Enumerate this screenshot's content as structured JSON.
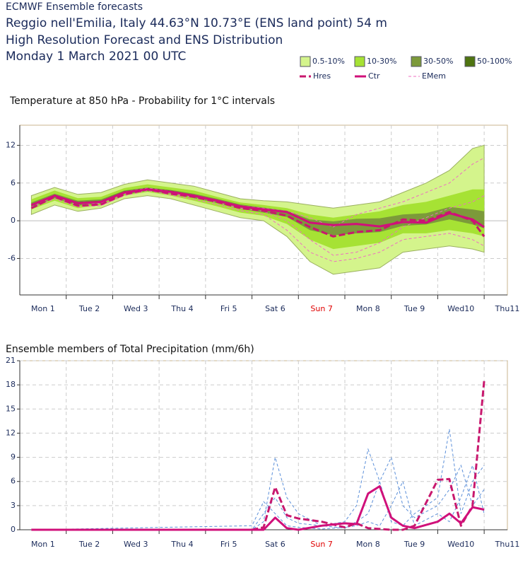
{
  "header": {
    "lines": [
      "ECMWF Ensemble forecasts",
      "Reggio nell'Emilia, Italy 44.63°N 10.73°E (ENS land point) 54 m",
      "High Resolution Forecast and ENS Distribution",
      "Monday  1 March 2021 00 UTC"
    ]
  },
  "chart_data": [
    {
      "type": "line",
      "title": "Temperature at 850 hPa - Probability for 1°C intervals",
      "xlim": [
        0,
        10.5
      ],
      "ylim": [
        -11.8,
        15.2
      ],
      "yticks": [
        -6,
        0,
        6,
        12
      ],
      "x_grid": [
        1,
        2,
        3,
        4,
        5,
        6,
        7,
        8,
        9,
        10
      ],
      "xticks": [
        {
          "value": 0.5,
          "label": "Mon 1"
        },
        {
          "value": 1.5,
          "label": "Tue 2"
        },
        {
          "value": 2.5,
          "label": "Wed 3"
        },
        {
          "value": 3.5,
          "label": "Thu 4"
        },
        {
          "value": 4.5,
          "label": "Fri 5"
        },
        {
          "value": 5.5,
          "label": "Sat 6"
        },
        {
          "value": 6.5,
          "label": "Sun 7",
          "color": "#e00000"
        },
        {
          "value": 7.5,
          "label": "Mon 8"
        },
        {
          "value": 8.5,
          "label": "Tue 9"
        },
        {
          "value": 9.5,
          "label": "Wed10"
        },
        {
          "value": 10.5,
          "label": "Thu11"
        }
      ],
      "grid": true,
      "legend": "top-right",
      "x": [
        0.25,
        0.75,
        1.25,
        1.75,
        2.25,
        2.75,
        3.25,
        3.75,
        4.25,
        4.75,
        5.25,
        5.75,
        6.25,
        6.75,
        7.25,
        7.75,
        8.25,
        8.75,
        9.25,
        9.75,
        10
      ],
      "series": [
        {
          "name": "0.5-10%",
          "color": "#d4f48c",
          "lower": [
            1.0,
            2.5,
            1.5,
            2.0,
            3.5,
            4.0,
            3.5,
            2.5,
            1.5,
            0.5,
            0.0,
            -2.5,
            -6.5,
            -8.5,
            -8.0,
            -7.5,
            -5.0,
            -4.5,
            -4.0,
            -4.5,
            -5.0
          ],
          "upper": [
            4.0,
            5.3,
            4.2,
            4.5,
            5.8,
            6.5,
            6.0,
            5.5,
            4.5,
            3.5,
            3.2,
            3.0,
            2.5,
            2.0,
            2.5,
            3.0,
            4.5,
            6.0,
            8.0,
            11.5,
            12.0
          ]
        },
        {
          "name": "10-30%",
          "color": "#a6e234",
          "lower": [
            1.8,
            3.2,
            2.0,
            2.5,
            4.0,
            4.6,
            4.0,
            3.2,
            2.3,
            1.3,
            0.8,
            -0.5,
            -3.0,
            -4.5,
            -4.0,
            -3.5,
            -2.0,
            -2.0,
            -1.5,
            -2.0,
            -2.5
          ],
          "upper": [
            3.4,
            4.8,
            3.6,
            3.8,
            5.2,
            5.8,
            5.3,
            4.8,
            3.8,
            2.9,
            2.5,
            2.0,
            1.0,
            0.5,
            1.0,
            1.5,
            2.5,
            3.0,
            4.0,
            5.0,
            5.0
          ]
        },
        {
          "name": "30-50%",
          "color": "#7c9a3a",
          "lower": [
            2.1,
            3.6,
            2.4,
            2.7,
            4.2,
            4.7,
            4.3,
            3.6,
            2.8,
            1.9,
            1.3,
            0.6,
            -1.5,
            -2.3,
            -2.0,
            -1.8,
            -0.8,
            -0.6,
            0.2,
            -0.6,
            -1.2
          ],
          "upper": [
            2.9,
            4.3,
            3.2,
            3.4,
            4.8,
            5.3,
            4.9,
            4.3,
            3.5,
            2.6,
            2.1,
            1.6,
            0.2,
            -0.1,
            0.3,
            0.4,
            1.0,
            1.2,
            2.2,
            1.8,
            1.5
          ]
        },
        {
          "name": "50-100%",
          "color": "#4e7410",
          "lower": [
            2.3,
            3.8,
            2.6,
            2.9,
            4.4,
            4.9,
            4.5,
            3.9,
            null,
            null,
            null,
            null,
            null,
            null,
            null,
            null,
            null,
            null,
            null,
            null,
            null
          ],
          "upper": [
            2.7,
            4.1,
            3.0,
            3.2,
            4.7,
            5.2,
            4.8,
            4.1,
            null,
            null,
            null,
            null,
            null,
            null,
            null,
            null,
            null,
            null,
            null,
            null,
            null
          ]
        },
        {
          "name": "Hres",
          "color": "#c8186e",
          "style": "dashed",
          "values": [
            2.0,
            3.8,
            2.4,
            2.6,
            4.2,
            5.0,
            4.3,
            3.8,
            3.0,
            2.0,
            1.6,
            0.8,
            -1.0,
            -2.5,
            -1.8,
            -1.5,
            0.2,
            0.0,
            1.4,
            0.0,
            -2.5
          ]
        },
        {
          "name": "Ctr",
          "color": "#d0107a",
          "style": "solid",
          "values": [
            2.5,
            4.0,
            2.8,
            3.0,
            4.5,
            5.0,
            4.6,
            4.0,
            3.2,
            2.3,
            1.8,
            1.4,
            -0.3,
            -0.7,
            -0.5,
            -0.9,
            -0.2,
            -0.3,
            1.2,
            0.2,
            -1.0
          ]
        },
        {
          "name": "EMem",
          "color": "#ee6fc0",
          "style": "thin-dashed",
          "members": [
            [
              2.2,
              3.9,
              2.5,
              2.8,
              4.3,
              5.1,
              4.4,
              3.7,
              2.9,
              2.0,
              1.5,
              0.0,
              -3.0,
              -5.5,
              -5.0,
              -3.5,
              -1.0,
              0.5,
              2.0,
              3.0,
              4.0
            ],
            [
              2.6,
              4.1,
              2.9,
              3.1,
              4.6,
              5.2,
              4.7,
              4.1,
              3.3,
              2.4,
              2.0,
              1.5,
              0.5,
              -1.0,
              1.0,
              2.0,
              3.0,
              4.5,
              6.0,
              9.0,
              10.0
            ],
            [
              2.0,
              3.5,
              2.2,
              2.4,
              4.0,
              4.8,
              4.1,
              3.4,
              2.6,
              1.6,
              1.0,
              -1.5,
              -5.0,
              -6.5,
              -6.0,
              -5.0,
              -3.0,
              -2.5,
              -2.0,
              -3.0,
              -4.0
            ]
          ]
        }
      ]
    },
    {
      "type": "line",
      "title": "Ensemble members of Total Precipitation (mm/6h)",
      "xlim": [
        0,
        10.5
      ],
      "ylim": [
        0,
        21
      ],
      "yticks": [
        0,
        3,
        6,
        9,
        12,
        15,
        18,
        21
      ],
      "x_grid": [
        1,
        2,
        3,
        4,
        5,
        6,
        7,
        8,
        9,
        10
      ],
      "xticks": [
        {
          "value": 0.5,
          "label": "Mon 1"
        },
        {
          "value": 1.5,
          "label": "Tue 2"
        },
        {
          "value": 2.5,
          "label": "Wed 3"
        },
        {
          "value": 3.5,
          "label": "Thu 4"
        },
        {
          "value": 4.5,
          "label": "Fri 5"
        },
        {
          "value": 5.5,
          "label": "Sat 6"
        },
        {
          "value": 6.5,
          "label": "Sun 7",
          "color": "#e00000"
        },
        {
          "value": 7.5,
          "label": "Mon 8"
        },
        {
          "value": 8.5,
          "label": "Tue 9"
        },
        {
          "value": 9.5,
          "label": "Wed10"
        },
        {
          "value": 10.5,
          "label": "Thu11"
        }
      ],
      "grid": true,
      "x": [
        0.25,
        5.0,
        5.25,
        5.5,
        5.75,
        6.0,
        6.5,
        7.0,
        7.25,
        7.5,
        7.75,
        8.0,
        8.25,
        8.5,
        9.0,
        9.25,
        9.5,
        9.75,
        10
      ],
      "series": [
        {
          "color": "#5b8fd9",
          "style": "thin-dashed",
          "members": [
            [
              0,
              0,
              2.0,
              4.0,
              1.5,
              0.8,
              0.5,
              1.0,
              3.0,
              10.0,
              6.0,
              1.0,
              0.5,
              2.0,
              4.0,
              12.5,
              2.0,
              6.0,
              8.0
            ],
            [
              0,
              0,
              1.0,
              9.0,
              4.0,
              2.0,
              0.5,
              0.2,
              1.0,
              2.0,
              6.0,
              9.0,
              3.0,
              1.5,
              3.0,
              5.0,
              8.0,
              3.0,
              5.0
            ],
            [
              0,
              0.5,
              3.5,
              2.0,
              0.5,
              0.3,
              0.1,
              0.3,
              0.5,
              1.0,
              0.5,
              3.0,
              6.0,
              0.5,
              2.0,
              1.0,
              4.0,
              8.0,
              2.0
            ]
          ]
        },
        {
          "color": "#c8186e",
          "style": "dashed",
          "values": [
            0,
            0,
            0.3,
            5.3,
            1.8,
            1.4,
            1.0,
            0.3,
            0.8,
            0.2,
            0.1,
            0,
            0,
            0.5,
            6.2,
            6.3,
            0.5,
            3.0,
            18.5
          ]
        },
        {
          "color": "#d0107a",
          "style": "solid",
          "values": [
            0,
            0,
            0,
            1.5,
            0.2,
            0,
            0.5,
            0.8,
            0.7,
            4.5,
            5.4,
            1.5,
            0.5,
            0.2,
            1.0,
            2.0,
            0.8,
            2.8,
            2.5
          ]
        }
      ]
    }
  ]
}
